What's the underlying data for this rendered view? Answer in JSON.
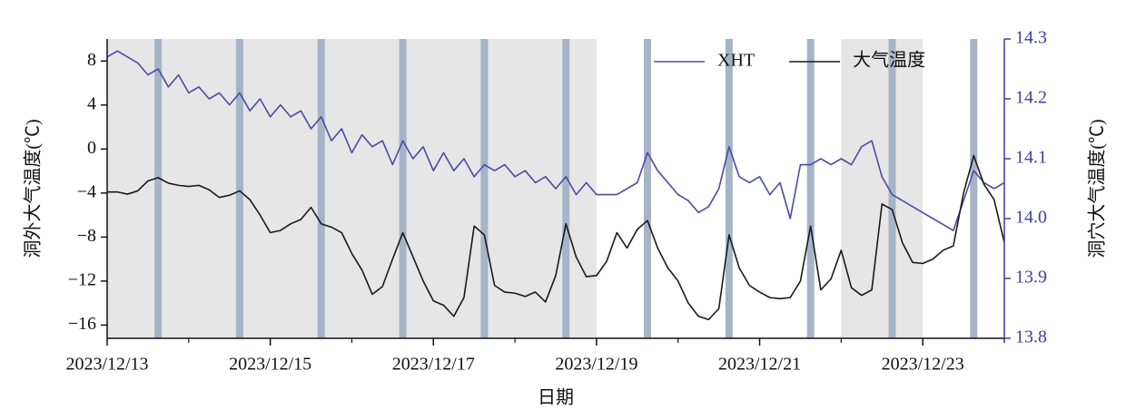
{
  "chart_data": {
    "type": "line",
    "xlabel": "日期",
    "ylabel": "洞外大气温度(℃)",
    "y2label": "洞穴大气温度(℃)",
    "xlim": [
      0,
      11
    ],
    "xticks": [
      {
        "value": 0,
        "label": "2023/12/13"
      },
      {
        "value": 2,
        "label": "2023/12/15"
      },
      {
        "value": 4,
        "label": "2023/12/17"
      },
      {
        "value": 6,
        "label": "2023/12/19"
      },
      {
        "value": 8,
        "label": "2023/12/21"
      },
      {
        "value": 10,
        "label": "2023/12/23"
      }
    ],
    "xticks_minor": [
      1,
      3,
      5,
      7,
      9,
      11
    ],
    "ylim": [
      -17.2,
      10
    ],
    "yticks": [
      {
        "value": -16,
        "label": "−16"
      },
      {
        "value": -12,
        "label": "−12"
      },
      {
        "value": -8,
        "label": "−8"
      },
      {
        "value": -4,
        "label": "−4"
      },
      0,
      4,
      8
    ],
    "y2lim": [
      13.8,
      14.3
    ],
    "y2ticks": [
      13.8,
      13.9,
      {
        "value": 14,
        "label": "14.0"
      },
      14.1,
      14.2,
      14.3
    ],
    "y2color": "#3d3da0",
    "shaded": [
      [
        0,
        6
      ],
      [
        9,
        10
      ]
    ],
    "shade_color": "#e6e6e6",
    "bands": [
      0.625,
      1.625,
      2.625,
      3.625,
      4.625,
      5.625,
      6.625,
      7.625,
      8.625,
      9.625,
      10.625
    ],
    "band_color": "#a7b4c7",
    "legend": "upper right",
    "x": [
      0,
      0.125,
      0.25,
      0.375,
      0.5,
      0.625,
      0.75,
      0.875,
      1,
      1.125,
      1.25,
      1.375,
      1.5,
      1.625,
      1.75,
      1.875,
      2,
      2.125,
      2.25,
      2.375,
      2.5,
      2.625,
      2.75,
      2.875,
      3,
      3.125,
      3.25,
      3.375,
      3.5,
      3.625,
      3.75,
      3.875,
      4,
      4.125,
      4.25,
      4.375,
      4.5,
      4.625,
      4.75,
      4.875,
      5,
      5.125,
      5.25,
      5.375,
      5.5,
      5.625,
      5.75,
      5.875,
      6,
      6.125,
      6.25,
      6.375,
      6.5,
      6.625,
      6.75,
      6.875,
      7,
      7.125,
      7.25,
      7.375,
      7.5,
      7.625,
      7.75,
      7.875,
      8,
      8.125,
      8.25,
      8.375,
      8.5,
      8.625,
      8.75,
      8.875,
      9,
      9.125,
      9.25,
      9.375,
      9.5,
      9.625,
      9.75,
      9.875,
      10,
      10.125,
      10.25,
      10.375,
      10.5,
      10.625,
      10.75,
      10.875,
      11
    ],
    "series": [
      {
        "name": "XHT",
        "color": "#4a4aaa",
        "axis": "y2",
        "values": [
          14.27,
          14.28,
          14.27,
          14.26,
          14.24,
          14.25,
          14.22,
          14.24,
          14.21,
          14.22,
          14.2,
          14.21,
          14.19,
          14.21,
          14.18,
          14.2,
          14.17,
          14.19,
          14.17,
          14.18,
          14.15,
          14.17,
          14.13,
          14.15,
          14.11,
          14.14,
          14.12,
          14.13,
          14.09,
          14.13,
          14.1,
          14.12,
          14.08,
          14.11,
          14.08,
          14.1,
          14.07,
          14.09,
          14.08,
          14.09,
          14.07,
          14.08,
          14.06,
          14.07,
          14.05,
          14.07,
          14.04,
          14.06,
          14.04,
          14.04,
          14.04,
          14.05,
          14.06,
          14.11,
          14.08,
          14.06,
          14.04,
          14.03,
          14.01,
          14.02,
          14.05,
          14.12,
          14.07,
          14.06,
          14.07,
          14.04,
          14.06,
          14.0,
          14.09,
          14.09,
          14.1,
          14.09,
          14.1,
          14.09,
          14.12,
          14.13,
          14.07,
          14.04,
          14.03,
          14.02,
          14.01,
          14.0,
          13.99,
          13.98,
          14.03,
          14.08,
          14.06,
          14.05,
          14.06
        ]
      },
      {
        "name": "大气温度",
        "color": "#1a1a1a",
        "values": [
          -3.9,
          -3.9,
          -4.1,
          -3.8,
          -2.9,
          -2.6,
          -3.1,
          -3.3,
          -3.4,
          -3.3,
          -3.7,
          -4.4,
          -4.2,
          -3.8,
          -4.6,
          -6.0,
          -7.6,
          -7.4,
          -6.8,
          -6.4,
          -5.3,
          -6.8,
          -7.1,
          -7.6,
          -9.5,
          -11.0,
          -13.2,
          -12.5,
          -10.0,
          -7.6,
          -9.8,
          -12.0,
          -13.8,
          -14.2,
          -15.2,
          -13.5,
          -7.0,
          -7.8,
          -12.4,
          -13.0,
          -13.1,
          -13.4,
          -13.0,
          -13.9,
          -11.5,
          -6.8,
          -9.8,
          -11.6,
          -11.5,
          -10.2,
          -7.6,
          -9.0,
          -7.3,
          -6.5,
          -9.0,
          -10.8,
          -12.0,
          -14.0,
          -15.2,
          -15.5,
          -14.5,
          -7.8,
          -10.8,
          -12.4,
          -13.0,
          -13.5,
          -13.6,
          -13.5,
          -12.0,
          -7.0,
          -12.8,
          -11.8,
          -9.2,
          -12.6,
          -13.3,
          -12.8,
          -5.0,
          -5.5,
          -8.5,
          -10.3,
          -10.4,
          -10.0,
          -9.2,
          -8.8,
          -4.0,
          -0.6,
          -3.2,
          -4.6,
          -8.5
        ]
      }
    ]
  }
}
